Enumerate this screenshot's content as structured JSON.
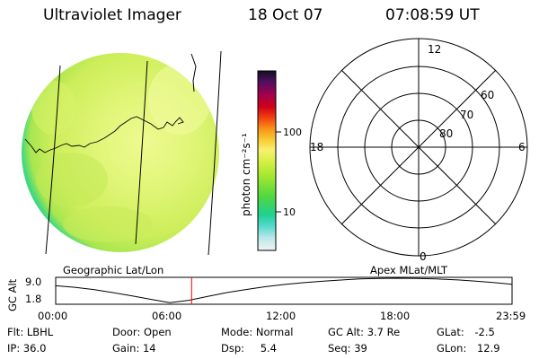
{
  "header": {
    "title": "Ultraviolet Imager",
    "date": "18 Oct 07",
    "time": "07:08:59 UT"
  },
  "colorbar": {
    "unit_label": "photon cm⁻²s⁻¹",
    "ticks": [
      "100",
      "10"
    ]
  },
  "polar_plot": {
    "clock_labels": {
      "top": "12",
      "right": "6",
      "bottom": "0",
      "left": "18"
    },
    "lat_labels": [
      "60",
      "70",
      "80"
    ]
  },
  "panel_labels": {
    "left": "Geographic Lat/Lon",
    "right": "Apex MLat/MLT"
  },
  "altitude_plot": {
    "ylabel": "GC Alt",
    "yticks": [
      "9.0",
      "1.8"
    ],
    "xticks": [
      "00:00",
      "06:00",
      "12:00",
      "18:00",
      "23:59"
    ],
    "current_time_fraction": 0.2979,
    "curve_y": [
      0.3,
      0.36,
      0.45,
      0.57,
      0.7,
      0.84,
      0.97,
      0.88,
      0.72,
      0.57,
      0.45,
      0.34,
      0.25,
      0.18,
      0.12,
      0.07,
      0.03,
      0.01,
      0.0,
      0.01,
      0.03,
      0.06,
      0.11,
      0.17,
      0.24
    ]
  },
  "info": {
    "row1": [
      {
        "label": "Flt:",
        "value": "LBHL"
      },
      {
        "label": "Door:",
        "value": "Open"
      },
      {
        "label": "Mode:",
        "value": "Normal"
      },
      {
        "label": "GC Alt:",
        "value": "3.7 Re"
      },
      {
        "label": "GLat:",
        "value": "-2.5"
      }
    ],
    "row2": [
      {
        "label": "IP:",
        "value": "36.0"
      },
      {
        "label": "Gain:",
        "value": "14"
      },
      {
        "label": "Dsp:",
        "value": "5.4"
      },
      {
        "label": "Seq:",
        "value": "39"
      },
      {
        "label": "GLon:",
        "value": "12.9"
      }
    ]
  },
  "colors": {
    "disk_main": "#d4f060",
    "disk_light": "#eefa90",
    "disk_edge": "#30d880",
    "time_marker": "#ff0000"
  }
}
